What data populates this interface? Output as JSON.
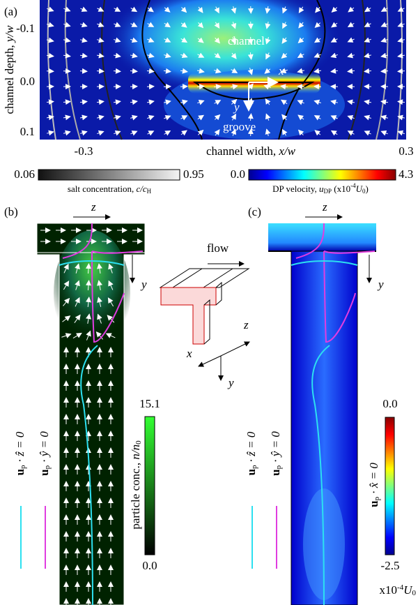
{
  "panel_a": {
    "label": "(a)",
    "y_label": [
      "channel depth, ",
      "y/w"
    ],
    "x_label": [
      "channel width, ",
      "x/w"
    ],
    "y_ticks": [
      "-0.1",
      "0.0",
      "0.1"
    ],
    "x_ticks": [
      "-0.3",
      "0.3"
    ],
    "channel": "channel",
    "groove": "groove",
    "axis_x": "x",
    "axis_y": "y"
  },
  "colorbar_salt": {
    "min": "0.06",
    "max": "0.95",
    "label": [
      "salt concentration, ",
      "c/c",
      "H"
    ]
  },
  "colorbar_dp": {
    "min": "0.0",
    "max": "4.3",
    "label": [
      "DP velocity, ",
      "u",
      "DP",
      " (x10",
      "-4",
      "U",
      "0",
      ")"
    ]
  },
  "panel_b": {
    "label": "(b)",
    "axis_z": "z",
    "axis_y": "y",
    "legend_z": [
      "u",
      "p",
      " · ẑ = 0"
    ],
    "legend_y": [
      "u",
      "p",
      " · ŷ = 0"
    ],
    "colorbar": {
      "max": "15.1",
      "min": "0.0",
      "label": [
        "particle conc., ",
        "n/n",
        "0"
      ]
    }
  },
  "inset": {
    "flow": "flow",
    "axis_z": "z",
    "axis_x": "x",
    "axis_y": "y"
  },
  "panel_c": {
    "label": "(c)",
    "axis_z": "z",
    "axis_y": "y",
    "legend_z": [
      "u",
      "p",
      " · ẑ = 0"
    ],
    "legend_y": [
      "u",
      "p",
      " · ŷ = 0"
    ],
    "colorbar": {
      "max": "0.0",
      "min": "-2.5",
      "label": [
        "u",
        "p",
        " · x̂ = 0"
      ],
      "unit": [
        "x10",
        "-4",
        "U",
        "0"
      ]
    }
  }
}
